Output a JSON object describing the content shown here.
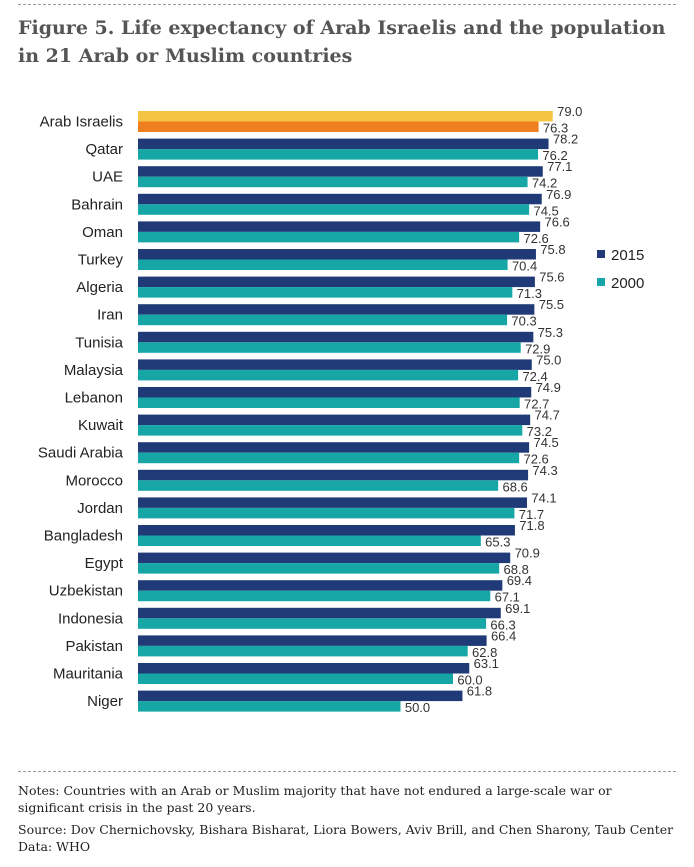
{
  "title": "Figure 5.  Life expectancy of Arab Israelis and the population in 21 Arab or Muslim countries",
  "notes": {
    "note": "Notes: Countries with an Arab or Muslim majority that have not endured a large-scale war or significant crisis in the past 20 years.",
    "source": "Source: Dov Chernichovsky, Bishara Bisharat, Liora Bowers, Aviv Brill, and Chen Sharony, Taub Center",
    "data": "Data: WHO"
  },
  "colors": {
    "series_2015": "#1f3a77",
    "series_2000": "#16a6a6",
    "highlight_2015": "#f5c445",
    "highlight_2000": "#f07f20"
  },
  "chart_data": {
    "type": "bar",
    "orientation": "horizontal",
    "legend": "right",
    "grid": false,
    "categories": [
      "Arab Israelis",
      "Qatar",
      "UAE",
      "Bahrain",
      "Oman",
      "Turkey",
      "Algeria",
      "Iran",
      "Tunisia",
      "Malaysia",
      "Lebanon",
      "Kuwait",
      "Saudi Arabia",
      "Morocco",
      "Jordan",
      "Bangladesh",
      "Egypt",
      "Uzbekistan",
      "Indonesia",
      "Pakistan",
      "Mauritania",
      "Niger"
    ],
    "series": [
      {
        "name": "2015",
        "values": [
          79.0,
          78.2,
          77.1,
          76.9,
          76.6,
          75.8,
          75.6,
          75.5,
          75.3,
          75.0,
          74.9,
          74.7,
          74.5,
          74.3,
          74.1,
          71.8,
          70.9,
          69.4,
          69.1,
          66.4,
          63.1,
          61.8
        ]
      },
      {
        "name": "2000",
        "values": [
          76.3,
          76.2,
          74.2,
          74.5,
          72.6,
          70.4,
          71.3,
          70.3,
          72.9,
          72.4,
          72.7,
          73.2,
          72.6,
          68.6,
          71.7,
          65.3,
          68.8,
          67.1,
          66.3,
          62.8,
          60.0,
          50.0
        ]
      }
    ],
    "value_labels": [
      [
        "79.0",
        "78.2",
        "77.1",
        "76.9",
        "76.6",
        "75.8",
        "75.6",
        "75.5",
        "75.3",
        "75.0",
        "74.9",
        "74.7",
        "74.5",
        "74.3",
        "74.1",
        "71.8",
        "70.9",
        "69.4",
        "69.1",
        "66.4",
        "63.1",
        "61.8"
      ],
      [
        "76.3",
        "76.2",
        "74.2",
        "74.5",
        "72.6",
        "70.4",
        "71.3",
        "70.3",
        "72.9",
        "72.4",
        "72.7",
        "73.2",
        "72.6",
        "68.6",
        "71.7",
        "65.3",
        "68.8",
        "67.1",
        "66.3",
        "62.8",
        "60.0",
        "50.0"
      ]
    ],
    "highlight_category": "Arab Israelis",
    "xlim": [
      0,
      80
    ]
  }
}
